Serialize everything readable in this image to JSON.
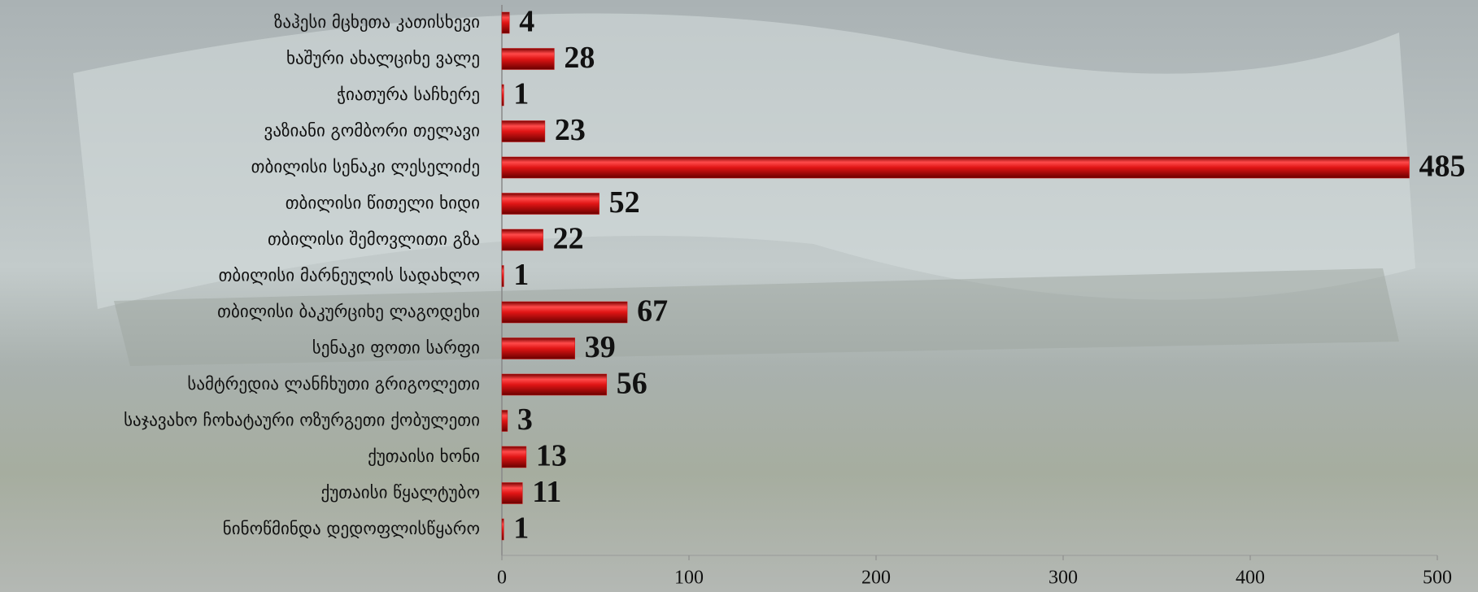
{
  "chart_data": {
    "type": "bar",
    "orientation": "horizontal",
    "categories": [
      "ზაჰესი მცხეთა კათისხევი",
      "ხაშური ახალციხე ვალე",
      "ჭიათურა საჩხერე",
      "ვაზიანი გომბორი თელავი",
      "თბილისი სენაკი ლესელიძე",
      "თბილისი წითელი ხიდი",
      "თბილისი შემოვლითი გზა",
      "თბილისი მარნეულის სადახლო",
      "თბილისი ბაკურციხე ლაგოდეხი",
      "სენაკი ფოთი სარფი",
      "სამტრედია ლანჩხუთი გრიგოლეთი",
      "საჯავახო ჩოხატაური ოზურგეთი ქობულეთი",
      "ქუთაისი ხონი",
      "ქუთაისი წყალტუბო",
      "ნინოწმინდა დედოფლისწყარო"
    ],
    "values": [
      4,
      28,
      1,
      23,
      485,
      52,
      22,
      1,
      67,
      39,
      56,
      3,
      13,
      11,
      1
    ],
    "color": "#d01010",
    "xlim": [
      0,
      500
    ],
    "xticks": [
      0,
      100,
      200,
      300,
      400,
      500
    ]
  }
}
